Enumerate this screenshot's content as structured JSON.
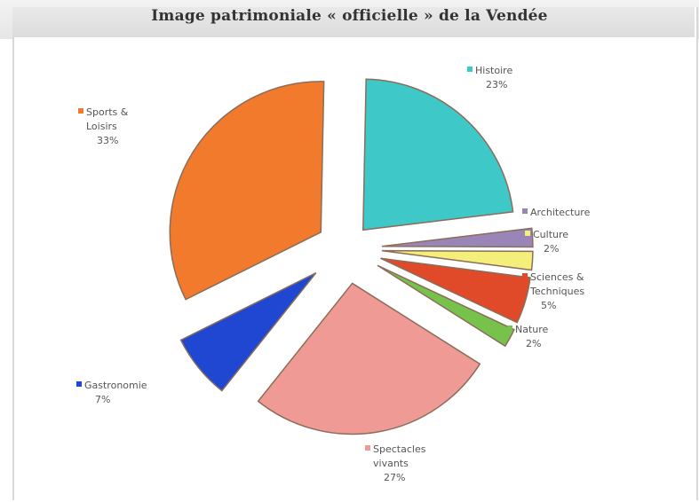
{
  "chart_data": {
    "type": "pie",
    "title": "Image patrimoniale « officielle » de la Vendée",
    "slices": [
      {
        "name": "Histoire",
        "value": 23,
        "percent_label": "23%",
        "color": "#3fc8c8"
      },
      {
        "name": "Architecture",
        "value": 2,
        "percent_label": "",
        "color": "#9a86b6"
      },
      {
        "name": "Culture",
        "value": 2,
        "percent_label": "2%",
        "color": "#f3ef7a"
      },
      {
        "name": "Sciences & Techniques",
        "value": 5,
        "percent_label": "5%",
        "color": "#e04a28"
      },
      {
        "name": "Nature",
        "value": 2,
        "percent_label": "2%",
        "color": "#77c24a"
      },
      {
        "name": "Spectacles vivants",
        "value": 27,
        "percent_label": "27%",
        "color": "#f09a96"
      },
      {
        "name": "Gastronomie",
        "value": 7,
        "percent_label": "7%",
        "color": "#1f47d1"
      },
      {
        "name": "Sports & Loisirs",
        "value": 33,
        "percent_label": "33%",
        "color": "#f27a2c"
      }
    ]
  }
}
